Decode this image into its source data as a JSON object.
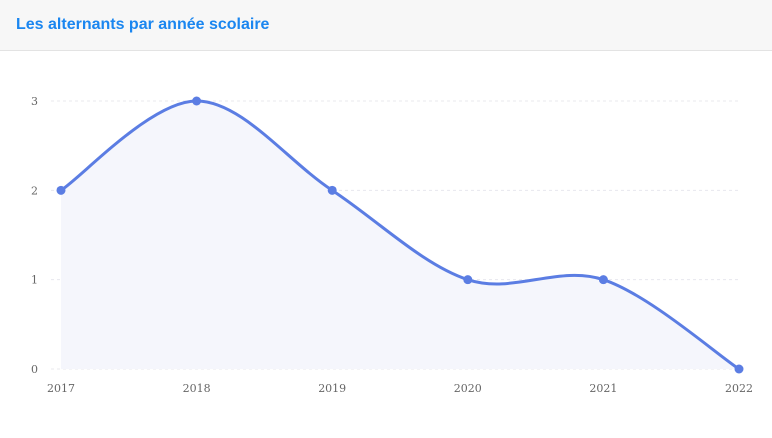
{
  "card": {
    "title": "Les alternants par année scolaire"
  },
  "colors": {
    "title": "#1a86f0",
    "series_line": "#5b7de3",
    "series_fill": "#f5f6fc",
    "grid": "#e8e8ee",
    "tick_label": "#666666"
  },
  "chart_data": {
    "type": "area",
    "smooth": true,
    "title": "Les alternants par année scolaire",
    "xlabel": "",
    "ylabel": "",
    "categories": [
      "2017",
      "2018",
      "2019",
      "2020",
      "2021",
      "2022"
    ],
    "series": [
      {
        "values": [
          2,
          3,
          2,
          1,
          1,
          0
        ]
      }
    ],
    "ylim": [
      0,
      3
    ],
    "yticks": [
      "0",
      "1",
      "2",
      "3"
    ],
    "grid": true,
    "grid_style": "dashed-horizontal",
    "markers": true,
    "legend": "none"
  }
}
